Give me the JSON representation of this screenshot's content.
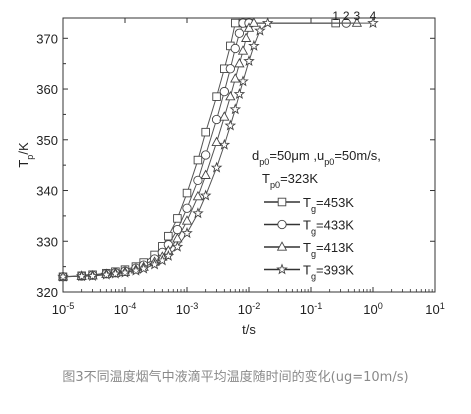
{
  "chart_data": {
    "type": "scatter",
    "x_scale": "log",
    "xlim": [
      1e-05,
      10
    ],
    "ylim": [
      320,
      374
    ],
    "x_ticks": [
      {
        "value": 1e-05,
        "base": "10",
        "exp": "-5"
      },
      {
        "value": 0.0001,
        "base": "10",
        "exp": "-4"
      },
      {
        "value": 0.001,
        "base": "10",
        "exp": "-3"
      },
      {
        "value": 0.01,
        "base": "10",
        "exp": "-2"
      },
      {
        "value": 0.1,
        "base": "10",
        "exp": "-1"
      },
      {
        "value": 1,
        "base": "10",
        "exp": "0"
      },
      {
        "value": 10,
        "base": "10",
        "exp": "1"
      }
    ],
    "y_ticks": [
      320,
      330,
      340,
      350,
      360,
      370
    ],
    "xlabel": "t/s",
    "ylabel": {
      "main": "T",
      "sub": "p",
      "rest": "/K"
    },
    "annotation": {
      "line1": {
        "d": "d",
        "d_sub": "p0",
        "d_rest": "=50μm ,u",
        "u_sub": "p0",
        "u_rest": "=50m/s,"
      },
      "line2": {
        "t": "T",
        "t_sub": "p0",
        "t_rest": "=323K"
      }
    },
    "series_labels": [
      {
        "text": "1",
        "x": 0.25
      },
      {
        "text": "2",
        "x": 0.37
      },
      {
        "text": "3",
        "x": 0.55
      },
      {
        "text": "4",
        "x": 1.0
      }
    ],
    "grid": false,
    "legend_position": "center-right",
    "series": [
      {
        "name": "T_g=453K",
        "label_main": "—T",
        "label_sub": "g",
        "label_rest": "=453K",
        "marker": "square",
        "color": "#555555",
        "x": [
          1e-05,
          2e-05,
          3e-05,
          5e-05,
          7e-05,
          0.0001,
          0.00015,
          0.0002,
          0.0003,
          0.0004,
          0.0005,
          0.0007,
          0.001,
          0.0015,
          0.002,
          0.003,
          0.004,
          0.005,
          0.006,
          0.008,
          0.01,
          0.25
        ],
        "y": [
          323,
          323.2,
          323.4,
          323.7,
          324,
          324.4,
          325,
          325.8,
          327.3,
          329,
          331,
          334.5,
          339.5,
          346,
          351.5,
          358.5,
          364,
          368.5,
          373,
          373,
          373,
          373
        ]
      },
      {
        "name": "T_g=433K",
        "label_main": "—T",
        "label_sub": "g",
        "label_rest": "=433K",
        "marker": "circle",
        "color": "#555555",
        "x": [
          1e-05,
          2e-05,
          3e-05,
          5e-05,
          7e-05,
          0.0001,
          0.00015,
          0.0002,
          0.0003,
          0.0004,
          0.0005,
          0.0007,
          0.001,
          0.0015,
          0.002,
          0.003,
          0.004,
          0.005,
          0.006,
          0.007,
          0.008,
          0.01,
          0.37
        ],
        "y": [
          323,
          323.15,
          323.3,
          323.6,
          323.8,
          324.1,
          324.7,
          325.3,
          326.5,
          327.8,
          329.3,
          332.3,
          336.5,
          342,
          347,
          354,
          359.5,
          364,
          368,
          371,
          373,
          373,
          373
        ]
      },
      {
        "name": "T_g=413K",
        "label_main": "—T",
        "label_sub": "g",
        "label_rest": "=413K",
        "marker": "triangle",
        "color": "#555555",
        "x": [
          1e-05,
          2e-05,
          3e-05,
          5e-05,
          7e-05,
          0.0001,
          0.00015,
          0.0002,
          0.0003,
          0.0004,
          0.0005,
          0.0007,
          0.001,
          0.0015,
          0.002,
          0.003,
          0.004,
          0.005,
          0.006,
          0.007,
          0.008,
          0.009,
          0.01,
          0.012,
          0.55
        ],
        "y": [
          323,
          323.1,
          323.2,
          323.5,
          323.7,
          323.9,
          324.4,
          324.9,
          325.9,
          326.9,
          328.1,
          330.5,
          334,
          338.8,
          343,
          349.5,
          354.5,
          358.5,
          362,
          365,
          367.5,
          370,
          372,
          373,
          373
        ]
      },
      {
        "name": "T_g=393K",
        "label_main": "—T",
        "label_sub": "g",
        "label_rest": "=393K",
        "marker": "star",
        "color": "#555555",
        "x": [
          1e-05,
          2e-05,
          3e-05,
          5e-05,
          7e-05,
          0.0001,
          0.00015,
          0.0002,
          0.0003,
          0.0004,
          0.0005,
          0.0007,
          0.001,
          0.0015,
          0.002,
          0.003,
          0.004,
          0.005,
          0.006,
          0.007,
          0.008,
          0.01,
          0.012,
          0.015,
          0.02,
          1.0
        ],
        "y": [
          323,
          323.1,
          323.15,
          323.4,
          323.6,
          323.8,
          324.2,
          324.6,
          325.4,
          326.2,
          327.1,
          328.9,
          331.6,
          335.5,
          339,
          344.5,
          349,
          352.8,
          356,
          359,
          361.5,
          365.5,
          368.5,
          371.5,
          373,
          373
        ]
      }
    ]
  },
  "caption": "图3不同温度烟气中液滴平均温度随时间的变化(ug=10m/s)"
}
